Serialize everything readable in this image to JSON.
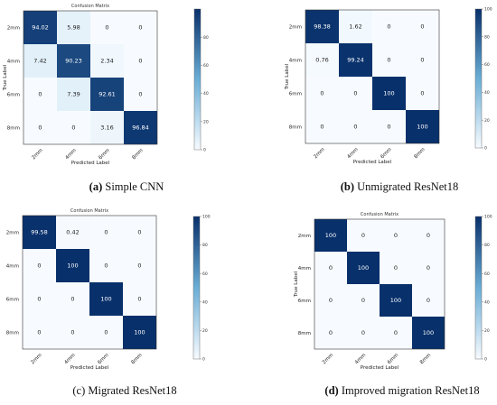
{
  "colors": {
    "low": "#f7fbff",
    "high": "#08306b",
    "dark_text": "#222222",
    "light_text": "#ffffff"
  },
  "chart_data": [
    {
      "type": "heatmap",
      "title": "Confusion Matrix",
      "caption": {
        "label": "(a)",
        "text": " Simple CNN"
      },
      "xlabel": "Predicted Label",
      "ylabel": "True Label",
      "x_categories": [
        "2mm",
        "4mm",
        "6mm",
        "8mm"
      ],
      "y_categories": [
        "2mm",
        "4mm",
        "6mm",
        "8mm"
      ],
      "values": [
        [
          94.02,
          5.98,
          0.0,
          0.0
        ],
        [
          7.42,
          90.23,
          2.34,
          0.0
        ],
        [
          0.0,
          7.39,
          92.61,
          0.0
        ],
        [
          0.0,
          0.0,
          3.16,
          96.84
        ]
      ],
      "colorbar": {
        "range": [
          0,
          100
        ],
        "ticks": [
          0,
          20,
          40,
          60,
          80
        ]
      }
    },
    {
      "type": "heatmap",
      "title": "",
      "caption": {
        "label": "(b)",
        "text": " Unmigrated ResNet18"
      },
      "xlabel": "Predicted Label",
      "ylabel": "True Label",
      "x_categories": [
        "2mm",
        "4mm",
        "6mm",
        "8mm"
      ],
      "y_categories": [
        "2mm",
        "4mm",
        "6mm",
        "8mm"
      ],
      "values": [
        [
          98.38,
          1.62,
          0.0,
          0.0
        ],
        [
          0.76,
          99.24,
          0.0,
          0.0
        ],
        [
          0.0,
          0.0,
          100.0,
          0.0
        ],
        [
          0.0,
          0.0,
          0.0,
          100.0
        ]
      ],
      "colorbar": {
        "range": [
          0,
          100
        ],
        "ticks": [
          0,
          20,
          40,
          60,
          80,
          100
        ]
      }
    },
    {
      "type": "heatmap",
      "title": "Confusion Matrix",
      "caption": {
        "label": "",
        "text": "(c) Migrated ResNet18"
      },
      "xlabel": "Predicted Label",
      "ylabel": "",
      "x_categories": [
        "2mm",
        "4mm",
        "6mm",
        "8mm"
      ],
      "y_categories": [
        "2mm",
        "4mm",
        "6mm",
        "8mm"
      ],
      "values": [
        [
          99.58,
          0.42,
          0.0,
          0.0
        ],
        [
          0.0,
          100.0,
          0.0,
          0.0
        ],
        [
          0.0,
          0.0,
          100.0,
          0.0
        ],
        [
          0.0,
          0.0,
          0.0,
          100.0
        ]
      ],
      "colorbar": {
        "range": [
          0,
          100
        ],
        "ticks": [
          0,
          20,
          40,
          60,
          80,
          100
        ]
      }
    },
    {
      "type": "heatmap",
      "title": "Confusion Matrix",
      "caption": {
        "label": "(d)",
        "text": " Improved migration ResNet18"
      },
      "xlabel": "Predicted Label",
      "ylabel": "True Label",
      "x_categories": [
        "2mm",
        "4mm",
        "6mm",
        "8mm"
      ],
      "y_categories": [
        "2mm",
        "4mm",
        "6mm",
        "8mm"
      ],
      "values": [
        [
          100.0,
          0.0,
          0.0,
          0.0
        ],
        [
          0.0,
          100.0,
          0.0,
          0.0
        ],
        [
          0.0,
          0.0,
          100.0,
          0.0
        ],
        [
          0.0,
          0.0,
          0.0,
          100.0
        ]
      ],
      "colorbar": {
        "range": [
          0,
          100
        ],
        "ticks": [
          0,
          20,
          40,
          60,
          80,
          100
        ]
      }
    }
  ]
}
